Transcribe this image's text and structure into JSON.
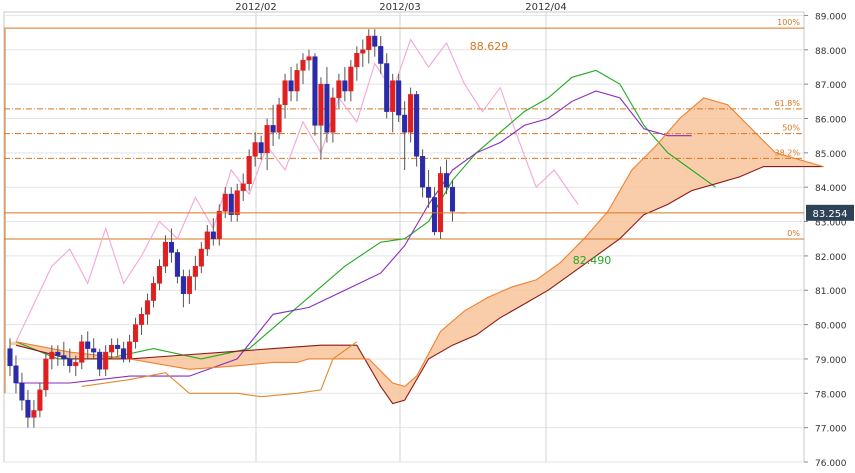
{
  "chart_data": {
    "type": "candlestick",
    "x_tick_labels": [
      "2012/02",
      "2012/03",
      "2012/04"
    ],
    "y_tick_labels": [
      "89.000",
      "88.000",
      "87.000",
      "86.000",
      "85.000",
      "84.000",
      "83.000",
      "82.000",
      "81.000",
      "80.000",
      "79.000",
      "78.000",
      "77.000",
      "76.000"
    ],
    "ylim": [
      76.0,
      89.1
    ],
    "grid": true,
    "current_price": "83.254",
    "annotations": {
      "high": "88.629",
      "low": "82.490"
    },
    "fibonacci": [
      {
        "label": "100%",
        "value": 88.629
      },
      {
        "label": "61.8%",
        "value": 86.28
      },
      {
        "label": "50%",
        "value": 85.56
      },
      {
        "label": "38.2%",
        "value": 84.84
      },
      {
        "label": "0%",
        "value": 82.49
      }
    ],
    "candles": [
      [
        79.3,
        79.6,
        78.5,
        78.8
      ],
      [
        78.8,
        79.1,
        78.0,
        78.3
      ],
      [
        78.3,
        78.6,
        77.5,
        77.8
      ],
      [
        77.8,
        78.1,
        77.0,
        77.3
      ],
      [
        77.3,
        77.8,
        77.0,
        77.5
      ],
      [
        77.5,
        78.3,
        77.3,
        78.1
      ],
      [
        78.1,
        79.2,
        77.9,
        79.0
      ],
      [
        79.0,
        79.4,
        78.7,
        79.2
      ],
      [
        79.2,
        79.4,
        78.8,
        79.1
      ],
      [
        79.1,
        79.5,
        78.8,
        79.0
      ],
      [
        79.0,
        79.3,
        78.6,
        78.8
      ],
      [
        78.8,
        79.1,
        78.5,
        78.9
      ],
      [
        78.9,
        79.7,
        78.7,
        79.5
      ],
      [
        79.5,
        79.8,
        79.0,
        79.3
      ],
      [
        79.3,
        79.6,
        79.0,
        79.2
      ],
      [
        79.2,
        79.3,
        78.5,
        78.7
      ],
      [
        78.7,
        79.4,
        78.5,
        79.2
      ],
      [
        79.2,
        79.6,
        79.0,
        79.4
      ],
      [
        79.4,
        79.6,
        79.1,
        79.3
      ],
      [
        79.3,
        79.5,
        78.9,
        79.0
      ],
      [
        79.0,
        79.7,
        78.9,
        79.5
      ],
      [
        79.5,
        80.2,
        79.3,
        80.0
      ],
      [
        80.0,
        80.5,
        79.7,
        80.3
      ],
      [
        80.3,
        80.9,
        80.0,
        80.7
      ],
      [
        80.7,
        81.4,
        80.5,
        81.2
      ],
      [
        81.2,
        81.9,
        81.0,
        81.7
      ],
      [
        81.7,
        82.6,
        81.5,
        82.4
      ],
      [
        82.4,
        82.8,
        81.8,
        82.1
      ],
      [
        82.1,
        82.2,
        81.2,
        81.4
      ],
      [
        81.4,
        81.6,
        80.5,
        80.9
      ],
      [
        80.9,
        81.6,
        80.6,
        81.4
      ],
      [
        81.4,
        82.0,
        81.0,
        81.7
      ],
      [
        81.7,
        82.4,
        81.5,
        82.2
      ],
      [
        82.2,
        82.9,
        82.0,
        82.7
      ],
      [
        82.7,
        83.1,
        82.3,
        82.5
      ],
      [
        82.5,
        83.5,
        82.3,
        83.3
      ],
      [
        83.3,
        84.0,
        83.1,
        83.8
      ],
      [
        83.8,
        84.0,
        83.0,
        83.2
      ],
      [
        83.2,
        84.1,
        83.0,
        83.9
      ],
      [
        83.9,
        84.4,
        83.6,
        84.1
      ],
      [
        84.1,
        85.1,
        83.9,
        84.9
      ],
      [
        84.9,
        85.6,
        84.6,
        85.3
      ],
      [
        85.3,
        85.5,
        84.8,
        85.0
      ],
      [
        85.0,
        86.0,
        84.5,
        85.8
      ],
      [
        85.8,
        86.4,
        85.2,
        85.6
      ],
      [
        85.6,
        86.6,
        85.4,
        86.4
      ],
      [
        86.4,
        87.3,
        86.0,
        87.1
      ],
      [
        87.1,
        87.5,
        86.5,
        86.8
      ],
      [
        86.8,
        87.6,
        86.5,
        87.4
      ],
      [
        87.4,
        87.9,
        87.0,
        87.7
      ],
      [
        87.7,
        88.0,
        87.4,
        87.8
      ],
      [
        87.8,
        87.9,
        85.5,
        85.8
      ],
      [
        85.8,
        87.2,
        84.8,
        87.0
      ],
      [
        87.0,
        87.5,
        85.3,
        85.6
      ],
      [
        85.6,
        86.9,
        85.3,
        86.6
      ],
      [
        86.6,
        87.3,
        86.3,
        87.1
      ],
      [
        87.1,
        87.5,
        86.5,
        86.8
      ],
      [
        86.8,
        87.7,
        86.5,
        87.5
      ],
      [
        87.5,
        88.1,
        87.1,
        87.9
      ],
      [
        87.9,
        88.3,
        87.5,
        88.0
      ],
      [
        88.0,
        88.6,
        87.6,
        88.4
      ],
      [
        88.4,
        88.6,
        87.8,
        88.1
      ],
      [
        88.1,
        88.4,
        87.3,
        87.6
      ],
      [
        87.6,
        87.9,
        86.0,
        86.2
      ],
      [
        86.2,
        87.3,
        85.6,
        87.1
      ],
      [
        87.1,
        87.3,
        85.9,
        86.1
      ],
      [
        86.1,
        86.5,
        84.5,
        85.6
      ],
      [
        85.6,
        86.9,
        85.3,
        86.7
      ],
      [
        86.7,
        86.8,
        84.6,
        84.9
      ],
      [
        84.9,
        85.1,
        83.7,
        84.0
      ],
      [
        84.0,
        84.5,
        83.4,
        83.7
      ],
      [
        83.7,
        84.0,
        82.6,
        82.7
      ],
      [
        82.7,
        84.6,
        82.5,
        84.4
      ],
      [
        84.4,
        84.8,
        83.8,
        84.0
      ],
      [
        84.0,
        84.2,
        83.0,
        83.3
      ]
    ],
    "overlay_lines": [
      {
        "color": "#f4a6d6",
        "x": [
          1,
          4,
          7,
          10,
          13,
          16,
          19,
          22,
          25,
          28,
          31,
          34,
          37,
          40,
          43,
          46,
          49,
          52,
          55,
          58,
          61,
          64,
          67,
          70,
          73,
          76,
          79,
          82,
          85,
          88,
          91,
          95
        ],
        "y": [
          79.5,
          80.6,
          81.7,
          82.2,
          81.2,
          82.8,
          81.2,
          82.0,
          83.0,
          82.5,
          83.7,
          82.8,
          84.5,
          83.8,
          85.2,
          84.5,
          85.9,
          85.0,
          86.6,
          85.9,
          87.6,
          86.8,
          88.3,
          87.5,
          88.2,
          87.0,
          86.2,
          86.9,
          85.4,
          84.0,
          84.5,
          83.5
        ]
      },
      {
        "color": "#22aa22",
        "x": [
          1,
          8,
          16,
          24,
          32,
          40,
          48,
          56,
          62,
          66,
          70,
          74,
          78,
          82,
          86,
          90,
          94,
          98,
          102,
          106,
          110,
          114,
          118
        ],
        "y": [
          79.5,
          79.0,
          79.0,
          79.3,
          79.0,
          79.3,
          80.5,
          81.7,
          82.4,
          82.5,
          83.0,
          84.2,
          85.0,
          85.6,
          86.2,
          86.6,
          87.2,
          87.4,
          87.0,
          85.8,
          85.0,
          84.5,
          84.0
        ]
      },
      {
        "color": "#8a2bbf",
        "x": [
          1,
          10,
          20,
          30,
          38,
          44,
          50,
          56,
          62,
          66,
          70,
          74,
          78,
          82,
          86,
          90,
          94,
          98,
          102,
          106,
          110,
          114
        ],
        "y": [
          78.3,
          78.3,
          78.5,
          78.5,
          79.0,
          80.3,
          80.5,
          81.0,
          81.5,
          82.3,
          83.5,
          84.5,
          85.0,
          85.3,
          85.8,
          86.0,
          86.5,
          86.8,
          86.6,
          85.7,
          85.5,
          85.5
        ]
      },
      {
        "color": "#8b1a1a",
        "x": [
          1,
          10,
          20,
          28,
          36,
          44,
          52,
          58,
          62,
          64,
          66,
          70,
          74,
          78,
          82,
          86,
          90,
          94,
          98,
          102,
          106,
          110,
          114,
          118,
          122,
          126,
          130,
          136
        ],
        "y": [
          79.4,
          79.0,
          79.0,
          79.1,
          79.2,
          79.3,
          79.4,
          79.4,
          78.2,
          77.7,
          77.8,
          79.0,
          79.4,
          79.7,
          80.2,
          80.6,
          81.0,
          81.5,
          82.0,
          82.5,
          83.2,
          83.5,
          83.9,
          84.1,
          84.3,
          84.6,
          84.6,
          84.6
        ]
      },
      {
        "color": "#f08030",
        "x": [
          1,
          10,
          20,
          30,
          38,
          44,
          48,
          50,
          54,
          56,
          60,
          64,
          66,
          68,
          72,
          76,
          80,
          84,
          88,
          92,
          96,
          100,
          104,
          108,
          112,
          116,
          120,
          124,
          128,
          132,
          136
        ],
        "y": [
          79.5,
          79.2,
          79.0,
          78.7,
          78.8,
          78.9,
          78.9,
          79.0,
          79.0,
          79.0,
          79.0,
          78.3,
          78.2,
          78.5,
          79.8,
          80.4,
          80.8,
          81.1,
          81.3,
          81.8,
          82.5,
          83.3,
          84.5,
          85.2,
          86.0,
          86.6,
          86.4,
          85.7,
          85.0,
          84.8,
          84.6
        ]
      },
      {
        "color": "#e08a2a",
        "x": [
          12,
          20,
          26,
          30,
          34,
          38,
          42,
          48,
          52,
          54,
          58
        ],
        "y": [
          78.2,
          78.4,
          78.6,
          78.0,
          78.0,
          78.0,
          77.9,
          78.0,
          78.1,
          79.0,
          79.5
        ]
      }
    ]
  }
}
